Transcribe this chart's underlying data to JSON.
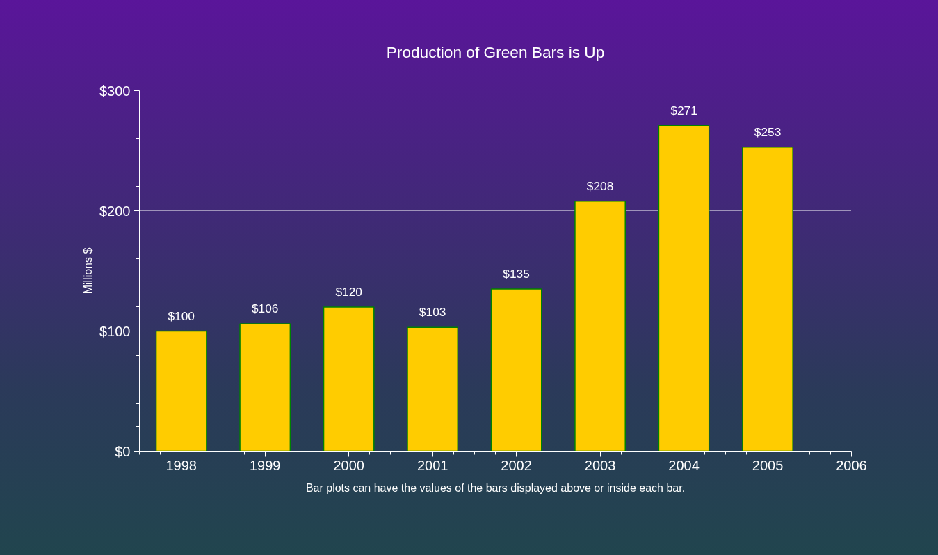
{
  "chart_data": {
    "type": "bar",
    "title": "Production of Green Bars is Up",
    "ylabel": "Millions $",
    "x": [
      1998,
      1999,
      2000,
      2001,
      2002,
      2003,
      2004,
      2005
    ],
    "values": [
      100,
      106,
      120,
      103,
      135,
      208,
      271,
      253
    ],
    "value_labels": [
      "$100",
      "$106",
      "$120",
      "$103",
      "$135",
      "$208",
      "$271",
      "$253"
    ],
    "color": "#ffcc00",
    "xlim": [
      1997.5,
      2006
    ],
    "xticks": [
      {
        "value": 1997.5,
        "label": null
      },
      {
        "value": 1997.75,
        "label": null
      },
      1998,
      {
        "value": 1998.25,
        "label": null
      },
      {
        "value": 1998.5,
        "label": null
      },
      {
        "value": 1998.75,
        "label": null
      },
      1999,
      {
        "value": 1999.25,
        "label": null
      },
      {
        "value": 1999.5,
        "label": null
      },
      {
        "value": 1999.75,
        "label": null
      },
      2000,
      {
        "value": 2000.25,
        "label": null
      },
      {
        "value": 2000.5,
        "label": null
      },
      {
        "value": 2000.75,
        "label": null
      },
      2001,
      {
        "value": 2001.25,
        "label": null
      },
      {
        "value": 2001.5,
        "label": null
      },
      {
        "value": 2001.75,
        "label": null
      },
      2002,
      {
        "value": 2002.25,
        "label": null
      },
      {
        "value": 2002.5,
        "label": null
      },
      {
        "value": 2002.75,
        "label": null
      },
      2003,
      {
        "value": 2003.25,
        "label": null
      },
      {
        "value": 2003.5,
        "label": null
      },
      {
        "value": 2003.75,
        "label": null
      },
      2004,
      {
        "value": 2004.25,
        "label": null
      },
      {
        "value": 2004.5,
        "label": null
      },
      {
        "value": 2004.75,
        "label": null
      },
      2005,
      {
        "value": 2005.25,
        "label": null
      },
      {
        "value": 2005.5,
        "label": null
      },
      {
        "value": 2005.75,
        "label": null
      },
      2006
    ],
    "ylim": [
      0,
      300
    ],
    "yticks": [
      {
        "value": 0,
        "label": "$0"
      },
      {
        "value": 20,
        "label": null
      },
      {
        "value": 40,
        "label": null
      },
      {
        "value": 60,
        "label": null
      },
      {
        "value": 80,
        "label": null
      },
      {
        "value": 100,
        "label": "$100"
      },
      {
        "value": 120,
        "label": null
      },
      {
        "value": 140,
        "label": null
      },
      {
        "value": 160,
        "label": null
      },
      {
        "value": 180,
        "label": null
      },
      {
        "value": 200,
        "label": "$200"
      },
      {
        "value": 220,
        "label": null
      },
      {
        "value": 240,
        "label": null
      },
      {
        "value": 260,
        "label": null
      },
      {
        "value": 280,
        "label": null
      },
      {
        "value": 300,
        "label": "$300"
      }
    ],
    "grid": "y",
    "annotations": [
      "Bar plots can have the values of the bars displayed above or inside each bar."
    ]
  }
}
